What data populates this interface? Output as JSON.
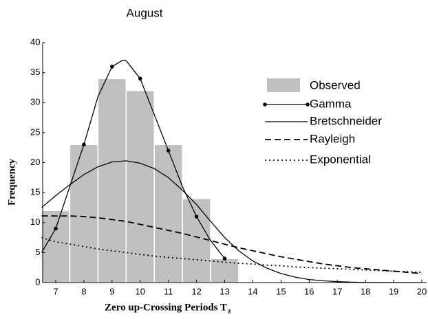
{
  "chart_data": {
    "type": "histogram",
    "title": "August",
    "xlabel": "Zero up-Crossing Periods T",
    "xlabel_sub": "z",
    "ylabel": "Frequency",
    "xlim": [
      6.5,
      20
    ],
    "xticks": [
      7,
      8,
      9,
      10,
      11,
      12,
      13,
      14,
      15,
      16,
      17,
      18,
      19,
      20
    ],
    "ylim": [
      0,
      40
    ],
    "yticks": [
      0,
      5,
      10,
      15,
      20,
      25,
      30,
      35,
      40
    ],
    "bars": {
      "name": "Observed",
      "color": "#c0c0c0",
      "bins": [
        6.5,
        7.5,
        8.5,
        9.5,
        10.5,
        11.5,
        12.5,
        13.5
      ],
      "values": [
        12,
        23,
        34,
        32,
        23,
        14,
        4
      ]
    },
    "series": [
      {
        "name": "Gamma",
        "color": "#000000",
        "dash": "solid",
        "markers": true,
        "x": [
          6.5,
          7,
          7.5,
          8,
          8.5,
          9,
          9.35,
          9.5,
          10,
          10.5,
          11,
          11.5,
          12,
          12.5,
          13
        ],
        "values": [
          5,
          9,
          16,
          23,
          31,
          36,
          37,
          37,
          34,
          28,
          22,
          16,
          11,
          7,
          4
        ]
      },
      {
        "name": "Bretschneider",
        "color": "#000000",
        "dash": "solid",
        "markers": false,
        "x": [
          6.5,
          7,
          7.5,
          8,
          8.5,
          9,
          9.5,
          10,
          10.5,
          11,
          11.5,
          12,
          12.5,
          13,
          13.5,
          14,
          14.5,
          15,
          15.5,
          16,
          16.5,
          17,
          17.5,
          18,
          18.5,
          19,
          19.5,
          20
        ],
        "values": [
          12.5,
          14.5,
          16.3,
          18,
          19.3,
          20.1,
          20.3,
          19.9,
          19,
          17.5,
          15.4,
          13,
          10.2,
          7.5,
          5.3,
          3.6,
          2.4,
          1.5,
          0.9,
          0.5,
          0.3,
          0.15,
          0.07,
          0.03,
          0.01,
          0,
          0,
          0
        ]
      },
      {
        "name": "Rayleigh",
        "color": "#000000",
        "dash": "dashed",
        "markers": false,
        "x": [
          6.5,
          7,
          7.5,
          8,
          8.5,
          9,
          9.5,
          10,
          10.5,
          11,
          11.5,
          12,
          12.5,
          13,
          13.5,
          14,
          14.5,
          15,
          15.5,
          16,
          16.5,
          17,
          17.5,
          18,
          18.5,
          19,
          19.5,
          20
        ],
        "values": [
          11.1,
          11.1,
          11.1,
          11,
          10.8,
          10.5,
          10.2,
          9.7,
          9.2,
          8.7,
          8.2,
          7.6,
          7,
          6.4,
          5.8,
          5.3,
          4.8,
          4.3,
          3.9,
          3.5,
          3.1,
          2.8,
          2.5,
          2.3,
          2.1,
          1.9,
          1.7,
          1.5
        ]
      },
      {
        "name": "Exponential",
        "color": "#000000",
        "dash": "dotted",
        "markers": false,
        "x": [
          6.5,
          7,
          7.5,
          8,
          8.5,
          9,
          9.5,
          10,
          10.5,
          11,
          11.5,
          12,
          12.5,
          13,
          13.5,
          14,
          14.5,
          15,
          15.5,
          16,
          16.5,
          17,
          17.5,
          18,
          18.5,
          19,
          19.5,
          20
        ],
        "values": [
          7.5,
          6.8,
          6.4,
          6,
          5.6,
          5.3,
          5,
          4.7,
          4.4,
          4.2,
          4,
          3.8,
          3.6,
          3.4,
          3.2,
          3.1,
          2.9,
          2.8,
          2.6,
          2.5,
          2.4,
          2.3,
          2.2,
          2.1,
          2,
          1.9,
          1.8,
          1.7
        ]
      }
    ]
  }
}
